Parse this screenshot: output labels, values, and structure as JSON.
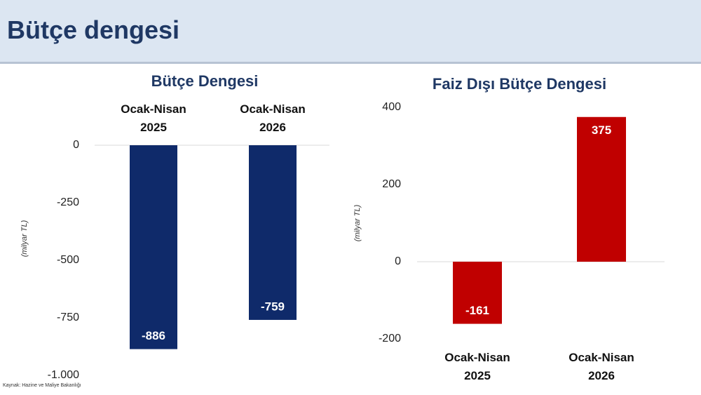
{
  "header": {
    "title": "Bütçe dengesi"
  },
  "source": "Kaynak: Hazine ve Maliye Bakanlığı",
  "chart_data": [
    {
      "type": "bar",
      "title": "Bütçe Dengesi",
      "y_label": "(milyar TL)",
      "categories": [
        "Ocak-Nisan 2025",
        "Ocak-Nisan 2026"
      ],
      "values": [
        -886,
        -759
      ],
      "color": "#0f2a6a",
      "ylim": [
        -1000,
        0
      ],
      "yticks": [
        0,
        -250,
        -500,
        -750,
        {
          "value": -1000,
          "label": "-1.000"
        }
      ]
    },
    {
      "type": "bar",
      "title": "Faiz Dışı Bütçe Dengesi",
      "y_label": "(milyar TL)",
      "categories": [
        "Ocak-Nisan 2025",
        "Ocak-Nisan 2026"
      ],
      "values": [
        -161,
        375
      ],
      "color": "#c00000",
      "ylim": [
        -200,
        400
      ],
      "yticks": [
        400,
        200,
        0,
        -200
      ]
    }
  ]
}
